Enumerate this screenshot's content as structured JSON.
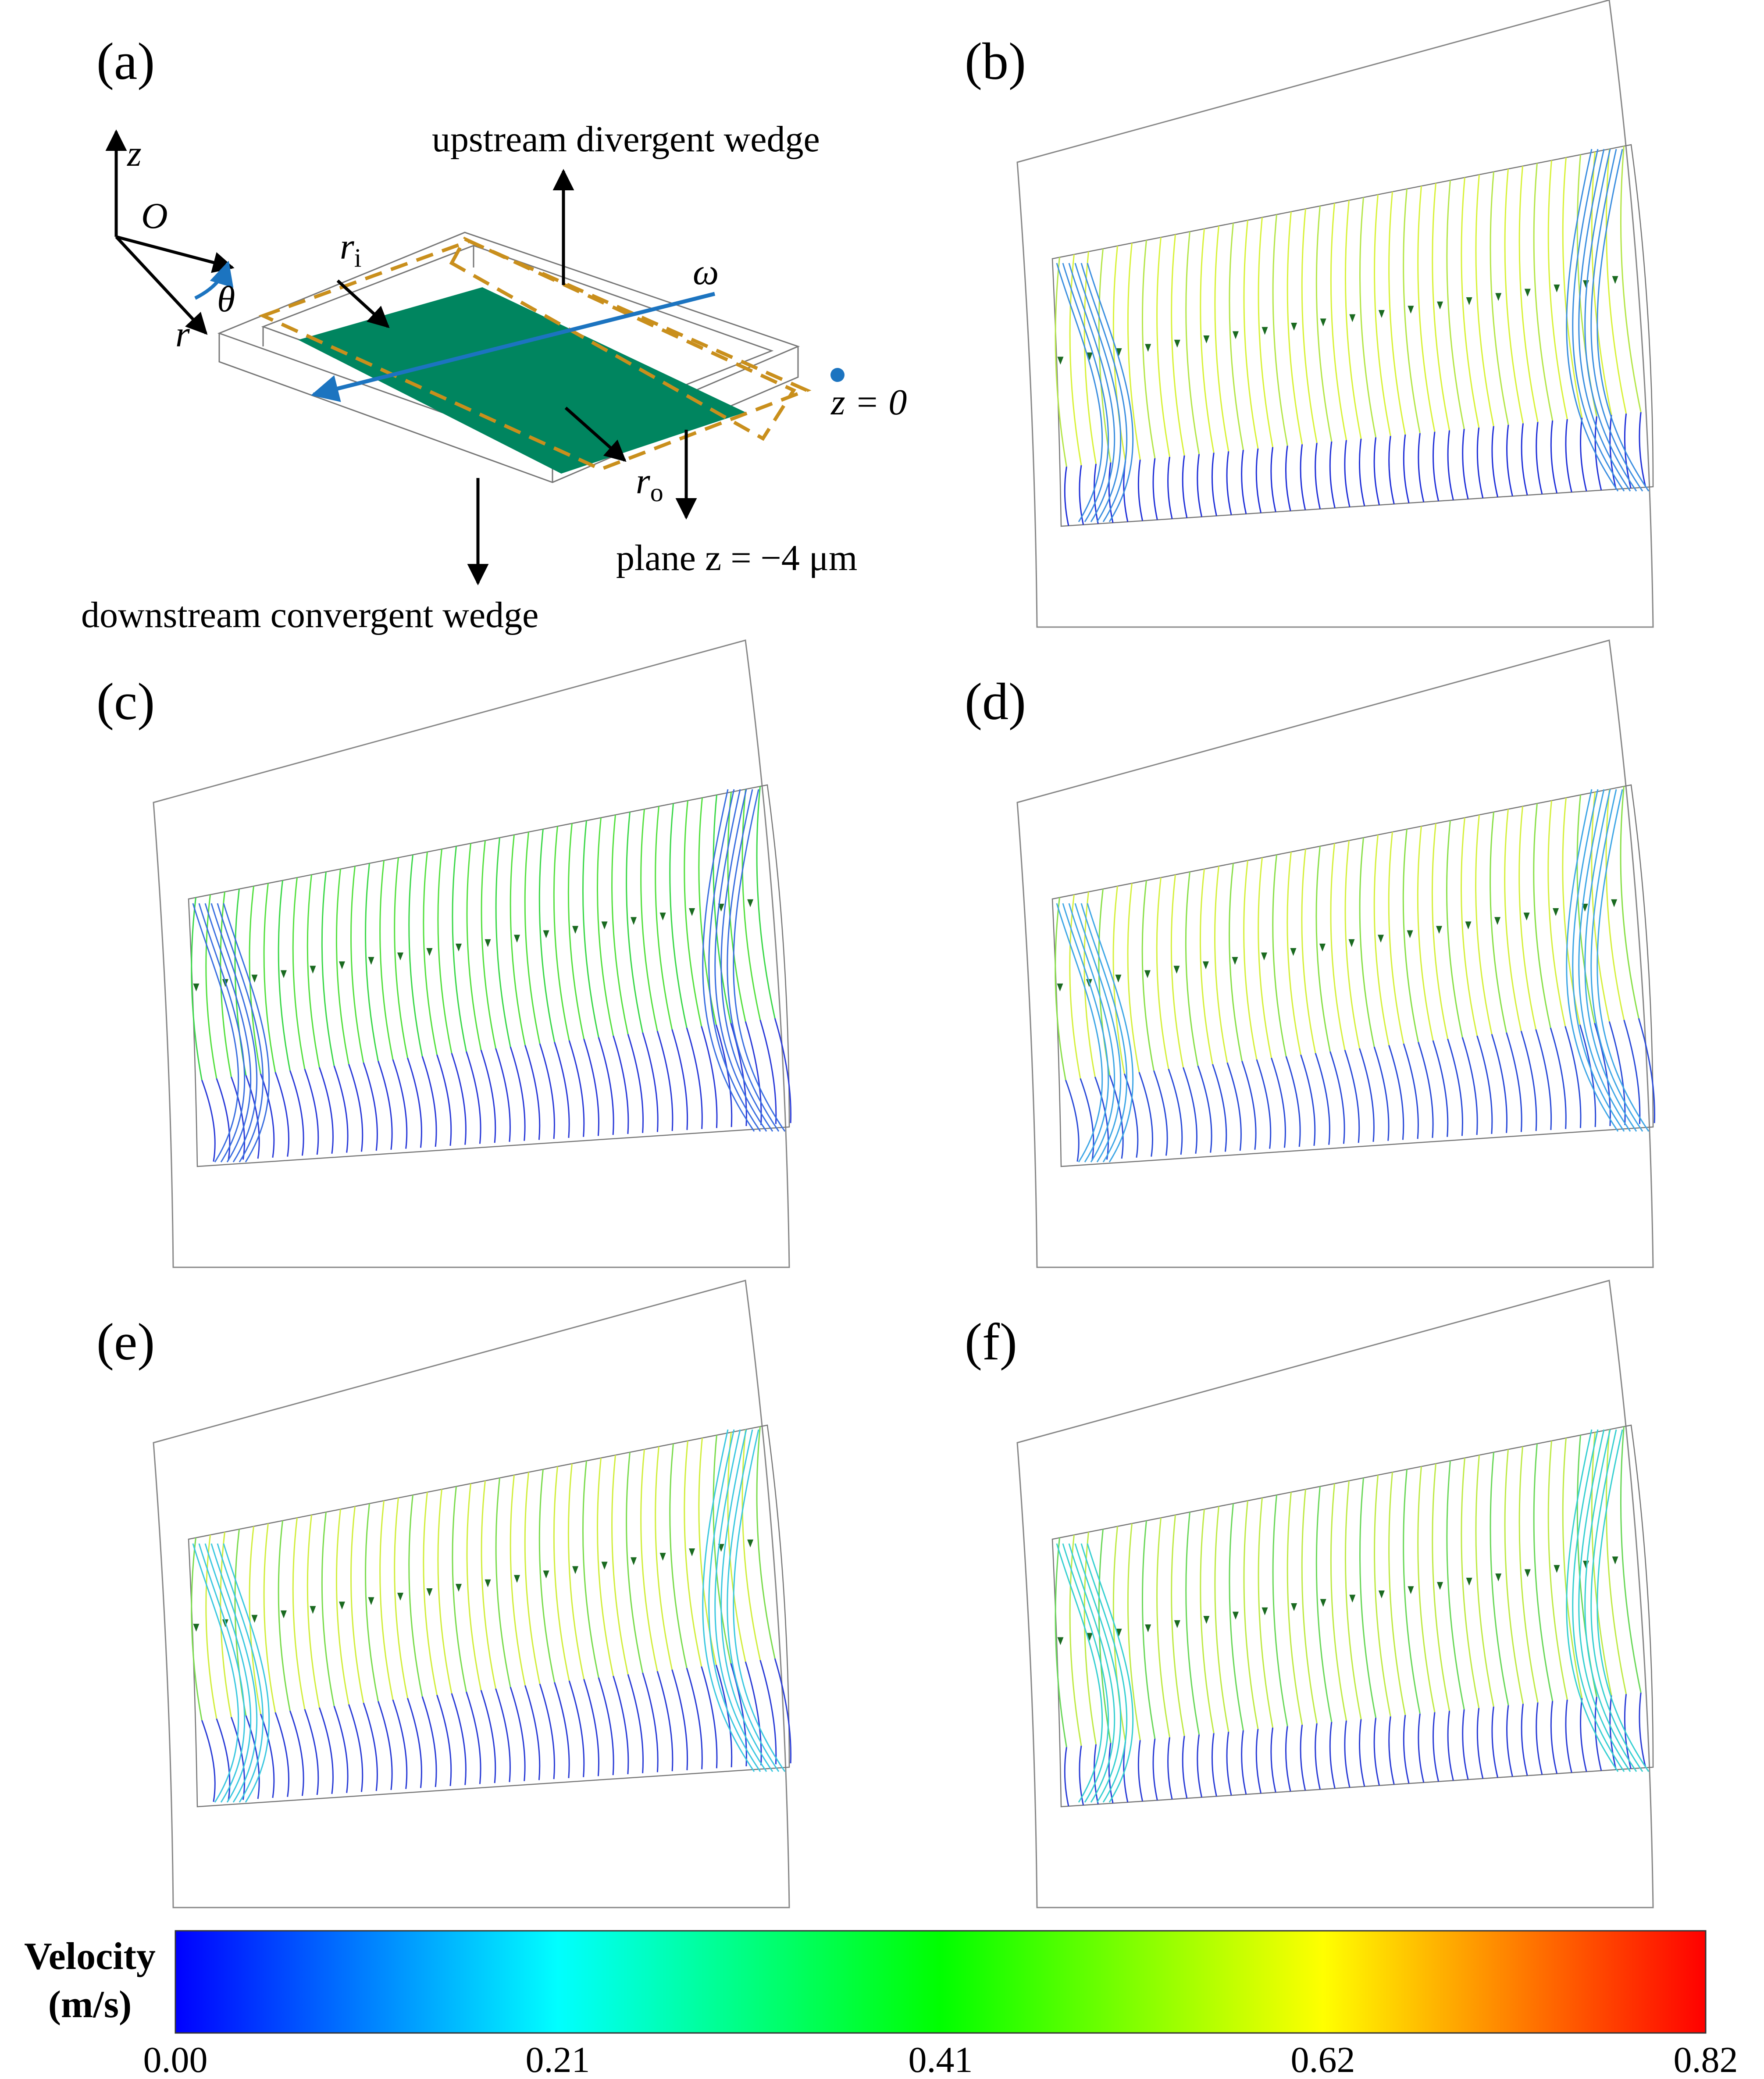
{
  "panels": [
    {
      "label": "(a)"
    },
    {
      "label": "(b)",
      "variant": "b"
    },
    {
      "label": "(c)",
      "variant": "c"
    },
    {
      "label": "(d)",
      "variant": "d"
    },
    {
      "label": "(e)",
      "variant": "e"
    },
    {
      "label": "(f)",
      "variant": "f"
    }
  ],
  "schematic": {
    "axes": {
      "z": "z",
      "O": "O",
      "theta": "θ",
      "r": "r",
      "omega": "ω"
    },
    "labels": {
      "r_i_base": "r",
      "r_i_sub": "i",
      "r_o_base": "r",
      "r_o_sub": "o",
      "upstream": "upstream divergent wedge",
      "downstream": "downstream convergent wedge",
      "z0": "z = 0",
      "plane": "plane z = −4 μm"
    },
    "colors": {
      "pad": "#00855F",
      "wedge_outline": "#C98F1C",
      "axis_arrow": "#1C74C0"
    }
  },
  "colorbar": {
    "title_line1": "Velocity",
    "title_line2": "(m/s)",
    "ticks": [
      "0.00",
      "0.21",
      "0.41",
      "0.62",
      "0.82"
    ],
    "min": 0.0,
    "max": 0.82,
    "colormap": [
      "#0000FF",
      "#00FFFF",
      "#00FF00",
      "#FFFF00",
      "#FF0000"
    ]
  }
}
